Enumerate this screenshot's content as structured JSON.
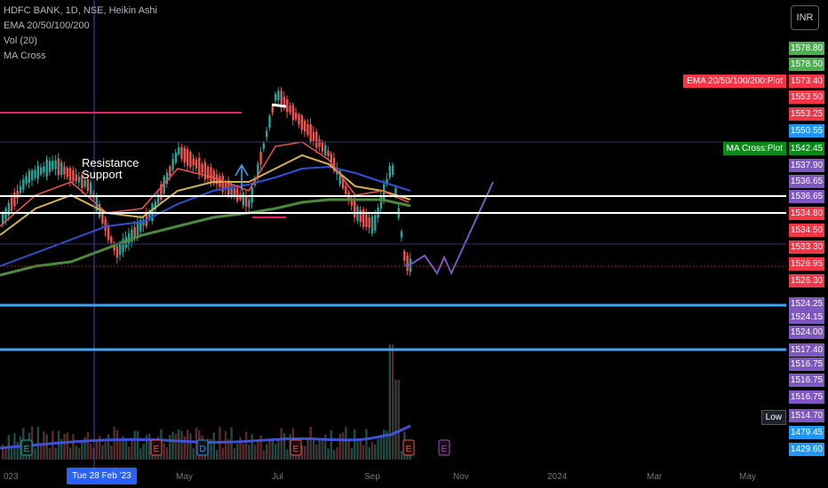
{
  "legend": {
    "symbol": "HDFC BANK, 1D, NSE, Heikin Ashi",
    "ema": "EMA 20/50/100/200",
    "vol": "Vol (20)",
    "ma_cross": "MA Cross"
  },
  "currency_button": "INR",
  "annotations": {
    "resistance": "Resistance",
    "support": "Support"
  },
  "price_labels": [
    {
      "value": "1578.80",
      "color": "#4caf50"
    },
    {
      "value": "1578.50",
      "color": "#4caf50"
    },
    {
      "value": "1573.40",
      "color": "#f23645"
    },
    {
      "value": "1553.50",
      "color": "#f23645"
    },
    {
      "value": "1553.25",
      "color": "#f23645"
    },
    {
      "value": "1550.55",
      "color": "#2196f3"
    },
    {
      "value": "1542.45",
      "color": "#0b8a1a"
    },
    {
      "value": "1537.90",
      "color": "#7e57c2"
    },
    {
      "value": "1536.65",
      "color": "#7e57c2"
    },
    {
      "value": "1536.65",
      "color": "#7e57c2"
    },
    {
      "value": "1534.80",
      "color": "#f23645"
    },
    {
      "value": "1534.50",
      "color": "#f23645"
    },
    {
      "value": "1533.30",
      "color": "#f23645"
    },
    {
      "value": "1526.95",
      "color": "#f23645"
    },
    {
      "value": "1526.30",
      "color": "#f23645"
    },
    {
      "value": "1524.25",
      "color": "#7e57c2"
    },
    {
      "value": "1524.15",
      "color": "#7e57c2"
    },
    {
      "value": "1524.00",
      "color": "#7e57c2"
    },
    {
      "value": "1517.40",
      "color": "#7e57c2"
    },
    {
      "value": "1516.75",
      "color": "#7e57c2"
    },
    {
      "value": "1516.75",
      "color": "#7e57c2"
    },
    {
      "value": "1516.75",
      "color": "#7e57c2"
    },
    {
      "value": "1514.70",
      "color": "#7e57c2"
    },
    {
      "value": "1479.45",
      "color": "#2196f3"
    },
    {
      "value": "1429.60",
      "color": "#2196f3"
    }
  ],
  "tags": {
    "ema_plot": "EMA 20/50/100/200:Plot",
    "ma_cross_plot": "MA Cross:Plot",
    "low": "Low"
  },
  "x_axis": {
    "labels": [
      "023",
      "May",
      "Jul",
      "Sep",
      "Nov",
      "2024",
      "Mar",
      "May"
    ],
    "crosshair_date": "Tue 28 Feb '23"
  },
  "event_markers": [
    "E",
    "E",
    "D",
    "E",
    "E",
    "E"
  ],
  "colors": {
    "up": "#26a69a",
    "down": "#ef5350",
    "ema20": "#ef5350",
    "ema50": "#d4b24c",
    "ema100": "#2f4fd6",
    "ema200": "#4a8a3a",
    "projection": "#7e57c2"
  }
}
